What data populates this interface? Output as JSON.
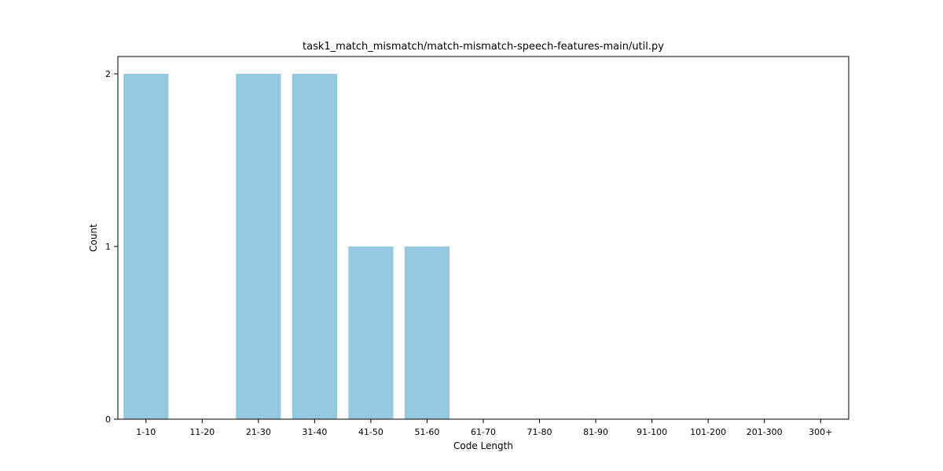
{
  "chart_data": {
    "type": "bar",
    "title": "task1_match_mismatch/match-mismatch-speech-features-main/util.py",
    "xlabel": "Code Length",
    "ylabel": "Count",
    "categories": [
      "1-10",
      "11-20",
      "21-30",
      "31-40",
      "41-50",
      "51-60",
      "61-70",
      "71-80",
      "81-90",
      "91-100",
      "101-200",
      "201-300",
      "300+"
    ],
    "values": [
      2,
      0,
      2,
      2,
      1,
      1,
      0,
      0,
      0,
      0,
      0,
      0,
      0
    ],
    "ylim": [
      0,
      2.1
    ],
    "yticks": [
      0,
      1,
      2
    ],
    "bar_color": "#95c9df",
    "grid": false
  }
}
